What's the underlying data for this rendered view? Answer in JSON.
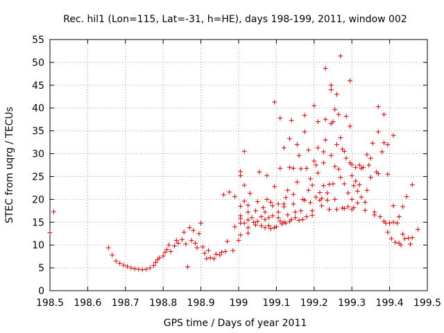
{
  "chart_data": {
    "type": "scatter",
    "title": "Rec. hil1 (Lon=115, Lat=-31, h=HE), days 198-199, 2011, window 002",
    "xlabel": "GPS time / Days of year 2011",
    "ylabel": "STEC from uqrg / TECUs",
    "xlim": [
      198.5,
      199.5
    ],
    "ylim": [
      0,
      55
    ],
    "xticks": [
      198.5,
      198.6,
      198.7,
      198.8,
      198.9,
      199,
      199.1,
      199.2,
      199.3,
      199.4,
      199.5
    ],
    "xtick_labels": [
      "198.5",
      "198.6",
      "198.7",
      "198.8",
      "198.9",
      "199",
      "199.1",
      "199.2",
      "199.3",
      "199.4",
      "199.5"
    ],
    "yticks": [
      0,
      5,
      10,
      15,
      20,
      25,
      30,
      35,
      40,
      45,
      50,
      55
    ],
    "ytick_labels": [
      "0",
      "5",
      "10",
      "15",
      "20",
      "25",
      "30",
      "35",
      "40",
      "45",
      "50",
      "55"
    ],
    "grid": true,
    "marker": "+",
    "color": "#cc0000",
    "series": [
      {
        "name": "STEC",
        "points": [
          [
            198.5,
            12.7
          ],
          [
            198.51,
            17.3
          ],
          [
            198.655,
            9.4
          ],
          [
            198.665,
            7.8
          ],
          [
            198.675,
            6.5
          ],
          [
            198.685,
            6.0
          ],
          [
            198.695,
            5.6
          ],
          [
            198.705,
            5.3
          ],
          [
            198.715,
            5.0
          ],
          [
            198.725,
            4.8
          ],
          [
            198.735,
            4.7
          ],
          [
            198.745,
            4.6
          ],
          [
            198.755,
            4.7
          ],
          [
            198.765,
            5.0
          ],
          [
            198.775,
            5.5
          ],
          [
            198.78,
            6.2
          ],
          [
            198.785,
            6.8
          ],
          [
            198.79,
            7.2
          ],
          [
            198.8,
            7.6
          ],
          [
            198.805,
            8.4
          ],
          [
            198.81,
            9.0
          ],
          [
            198.815,
            10.0
          ],
          [
            198.82,
            8.6
          ],
          [
            198.83,
            9.8
          ],
          [
            198.835,
            11.0
          ],
          [
            198.84,
            10.4
          ],
          [
            198.85,
            11.2
          ],
          [
            198.855,
            12.8
          ],
          [
            198.86,
            10.2
          ],
          [
            198.865,
            5.2
          ],
          [
            198.87,
            13.8
          ],
          [
            198.875,
            11.0
          ],
          [
            198.88,
            13.2
          ],
          [
            198.885,
            10.4
          ],
          [
            198.89,
            9.4
          ],
          [
            198.895,
            12.5
          ],
          [
            198.9,
            14.8
          ],
          [
            198.905,
            9.6
          ],
          [
            198.91,
            8.2
          ],
          [
            198.915,
            7.0
          ],
          [
            198.92,
            8.8
          ],
          [
            198.925,
            7.2
          ],
          [
            198.935,
            7.0
          ],
          [
            198.94,
            8.0
          ],
          [
            198.95,
            7.8
          ],
          [
            198.955,
            8.4
          ],
          [
            198.96,
            21.0
          ],
          [
            198.965,
            8.6
          ],
          [
            198.97,
            10.8
          ],
          [
            198.975,
            21.6
          ],
          [
            198.985,
            8.8
          ],
          [
            198.99,
            20.6
          ],
          [
            198.99,
            14.0
          ],
          [
            199.0,
            11.0
          ],
          [
            199.005,
            12.2
          ],
          [
            199.005,
            14.8
          ],
          [
            199.005,
            15.8
          ],
          [
            199.005,
            16.4
          ],
          [
            199.005,
            18.5
          ],
          [
            199.005,
            25.2
          ],
          [
            199.005,
            26.1
          ],
          [
            199.015,
            30.5
          ],
          [
            199.015,
            23.1
          ],
          [
            199.015,
            19.6
          ],
          [
            199.015,
            14.8
          ],
          [
            199.025,
            12.6
          ],
          [
            199.025,
            13.8
          ],
          [
            199.025,
            15.5
          ],
          [
            199.025,
            17.2
          ],
          [
            199.025,
            18.7
          ],
          [
            199.03,
            21.3
          ],
          [
            199.035,
            16.0
          ],
          [
            199.04,
            15.0
          ],
          [
            199.045,
            14.4
          ],
          [
            199.045,
            17.5
          ],
          [
            199.05,
            19.5
          ],
          [
            199.05,
            15.2
          ],
          [
            199.055,
            26.0
          ],
          [
            199.06,
            14.2
          ],
          [
            199.06,
            16.2
          ],
          [
            199.065,
            18.2
          ],
          [
            199.07,
            13.8
          ],
          [
            199.07,
            15.6
          ],
          [
            199.07,
            17.2
          ],
          [
            199.075,
            20.0
          ],
          [
            199.075,
            25.2
          ],
          [
            199.08,
            14.2
          ],
          [
            199.08,
            16.0
          ],
          [
            199.085,
            13.6
          ],
          [
            199.085,
            19.4
          ],
          [
            199.09,
            16.4
          ],
          [
            199.09,
            18.6
          ],
          [
            199.095,
            22.8
          ],
          [
            199.095,
            41.3
          ],
          [
            199.095,
            13.8
          ],
          [
            199.1,
            14.0
          ],
          [
            199.105,
            16.0
          ],
          [
            199.105,
            17.2
          ],
          [
            199.105,
            19.0
          ],
          [
            199.11,
            26.8
          ],
          [
            199.11,
            37.8
          ],
          [
            199.11,
            15.2
          ],
          [
            199.115,
            14.6
          ],
          [
            199.12,
            15.0
          ],
          [
            199.12,
            31.3
          ],
          [
            199.12,
            19.0
          ],
          [
            199.12,
            18.4
          ],
          [
            199.125,
            20.4
          ],
          [
            199.125,
            14.8
          ],
          [
            199.13,
            22.0
          ],
          [
            199.13,
            16.6
          ],
          [
            199.135,
            27.0
          ],
          [
            199.135,
            15.2
          ],
          [
            199.135,
            33.3
          ],
          [
            199.14,
            37.3
          ],
          [
            199.14,
            15.6
          ],
          [
            199.145,
            26.8
          ],
          [
            199.145,
            19.0
          ],
          [
            199.145,
            21.1
          ],
          [
            199.15,
            17.2
          ],
          [
            199.15,
            16.0
          ],
          [
            199.155,
            32.0
          ],
          [
            199.155,
            23.8
          ],
          [
            199.16,
            15.4
          ],
          [
            199.16,
            29.6
          ],
          [
            199.165,
            26.7
          ],
          [
            199.165,
            17.5
          ],
          [
            199.17,
            20.0
          ],
          [
            199.17,
            15.6
          ],
          [
            199.175,
            34.8
          ],
          [
            199.175,
            38.4
          ],
          [
            199.175,
            19.8
          ],
          [
            199.18,
            26.8
          ],
          [
            199.18,
            16.2
          ],
          [
            199.185,
            22.0
          ],
          [
            199.185,
            30.8
          ],
          [
            199.19,
            24.5
          ],
          [
            199.19,
            19.3
          ],
          [
            199.195,
            23.1
          ],
          [
            199.195,
            17.5
          ],
          [
            199.195,
            16.5
          ],
          [
            199.2,
            28.4
          ],
          [
            199.2,
            40.5
          ],
          [
            199.205,
            20.5
          ],
          [
            199.205,
            27.5
          ],
          [
            199.21,
            25.8
          ],
          [
            199.21,
            31.3
          ],
          [
            199.21,
            37.0
          ],
          [
            199.215,
            19.8
          ],
          [
            199.215,
            21.5
          ],
          [
            199.22,
            20.2
          ],
          [
            199.22,
            18.6
          ],
          [
            199.225,
            23.0
          ],
          [
            199.225,
            28.0
          ],
          [
            199.225,
            30.4
          ],
          [
            199.23,
            37.5
          ],
          [
            199.23,
            48.7
          ],
          [
            199.23,
            33.0
          ],
          [
            199.235,
            21.4
          ],
          [
            199.235,
            19.8
          ],
          [
            199.24,
            23.3
          ],
          [
            199.24,
            17.8
          ],
          [
            199.245,
            45.0
          ],
          [
            199.245,
            44.0
          ],
          [
            199.245,
            36.6
          ],
          [
            199.245,
            29.6
          ],
          [
            199.25,
            37.0
          ],
          [
            199.25,
            23.4
          ],
          [
            199.255,
            39.7
          ],
          [
            199.255,
            27.2
          ],
          [
            199.255,
            20.0
          ],
          [
            199.26,
            43.0
          ],
          [
            199.26,
            32.0
          ],
          [
            199.26,
            17.8
          ],
          [
            199.265,
            38.6
          ],
          [
            199.265,
            26.6
          ],
          [
            199.27,
            51.4
          ],
          [
            199.27,
            33.5
          ],
          [
            199.27,
            24.8
          ],
          [
            199.275,
            31.0
          ],
          [
            199.275,
            18.1
          ],
          [
            199.28,
            30.5
          ],
          [
            199.28,
            23.4
          ],
          [
            199.28,
            18.0
          ],
          [
            199.285,
            38.2
          ],
          [
            199.285,
            29.0
          ],
          [
            199.29,
            18.4
          ],
          [
            199.29,
            21.4
          ],
          [
            199.295,
            46.0
          ],
          [
            199.295,
            36.0
          ],
          [
            199.295,
            28.0
          ],
          [
            199.3,
            27.6
          ],
          [
            199.3,
            25.2
          ],
          [
            199.3,
            20.0
          ],
          [
            199.3,
            17.8
          ],
          [
            199.305,
            23.0
          ],
          [
            199.305,
            18.2
          ],
          [
            199.31,
            27.0
          ],
          [
            199.31,
            24.0
          ],
          [
            199.315,
            21.8
          ],
          [
            199.315,
            19.2
          ],
          [
            199.32,
            27.5
          ],
          [
            199.32,
            23.2
          ],
          [
            199.325,
            26.8
          ],
          [
            199.325,
            20.5
          ],
          [
            199.33,
            27.0
          ],
          [
            199.335,
            19.4
          ],
          [
            199.335,
            17.6
          ],
          [
            199.34,
            29.8
          ],
          [
            199.34,
            22.0
          ],
          [
            199.345,
            27.5
          ],
          [
            199.35,
            29.0
          ],
          [
            199.35,
            24.8
          ],
          [
            199.355,
            32.3
          ],
          [
            199.36,
            17.2
          ],
          [
            199.36,
            16.6
          ],
          [
            199.365,
            26.0
          ],
          [
            199.37,
            40.3
          ],
          [
            199.37,
            34.8
          ],
          [
            199.37,
            25.6
          ],
          [
            199.375,
            16.2
          ],
          [
            199.38,
            30.4
          ],
          [
            199.385,
            38.6
          ],
          [
            199.385,
            32.4
          ],
          [
            199.385,
            15.2
          ],
          [
            199.39,
            14.8
          ],
          [
            199.395,
            32.0
          ],
          [
            199.395,
            25.5
          ],
          [
            199.395,
            12.8
          ],
          [
            199.4,
            14.8
          ],
          [
            199.405,
            11.4
          ],
          [
            199.41,
            34.0
          ],
          [
            199.41,
            18.6
          ],
          [
            199.41,
            15.0
          ],
          [
            199.415,
            10.6
          ],
          [
            199.42,
            14.8
          ],
          [
            199.425,
            16.2
          ],
          [
            199.425,
            10.4
          ],
          [
            199.43,
            10.0
          ],
          [
            199.435,
            18.4
          ],
          [
            199.435,
            12.4
          ],
          [
            199.44,
            11.4
          ],
          [
            199.445,
            20.6
          ],
          [
            199.45,
            11.5
          ],
          [
            199.455,
            10.2
          ],
          [
            199.46,
            11.6
          ],
          [
            199.46,
            23.2
          ],
          [
            199.475,
            13.4
          ]
        ]
      }
    ]
  }
}
